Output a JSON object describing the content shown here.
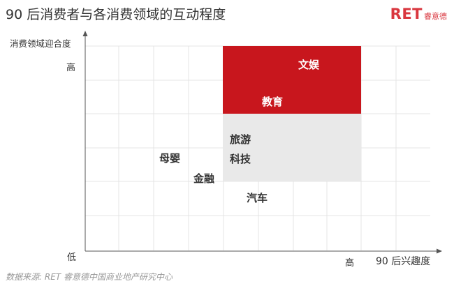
{
  "title": "90 后消费者与各消费领域的互动程度",
  "logo": {
    "mark": "RET",
    "text": "睿意德"
  },
  "axes": {
    "y_label": "消费领域迎合度",
    "y_high": "高",
    "y_low": "低",
    "x_high": "高",
    "x_label": "90 后兴趣度"
  },
  "colors": {
    "red": "#c8161d",
    "gray": "#e9e9e9",
    "axis": "#555555",
    "grid": "#e4e4e4"
  },
  "regions": [
    {
      "name": "high-region",
      "color": "red"
    },
    {
      "name": "medium-region",
      "color": "gray"
    }
  ],
  "labels": [
    {
      "id": "wenyu",
      "text": "文娱"
    },
    {
      "id": "jiaoyu",
      "text": "教育"
    },
    {
      "id": "lvyou",
      "text": "旅游"
    },
    {
      "id": "keji",
      "text": "科技"
    },
    {
      "id": "muying",
      "text": "母婴"
    },
    {
      "id": "jinrong",
      "text": "金融"
    },
    {
      "id": "qiche",
      "text": "汽车"
    }
  ],
  "source": "数据来源: RET 睿意德中国商业地产研究中心"
}
